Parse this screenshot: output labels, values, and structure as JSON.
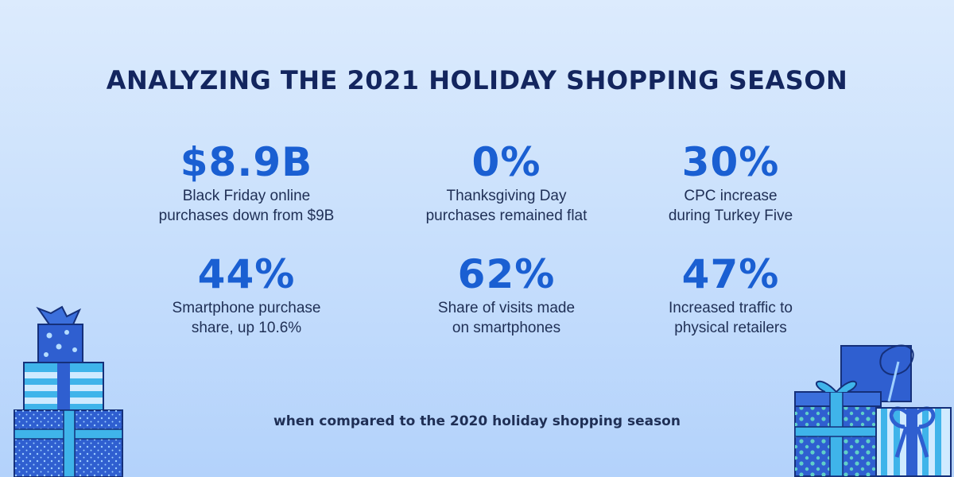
{
  "title": "ANALYZING THE 2021 HOLIDAY SHOPPING SEASON",
  "stats": [
    {
      "value": "$8.9B",
      "line1": "Black Friday online",
      "line2": "purchases down from $9B"
    },
    {
      "value": "0%",
      "line1": "Thanksgiving Day",
      "line2": "purchases remained flat"
    },
    {
      "value": "30%",
      "line1": "CPC increase",
      "line2": "during Turkey Five"
    },
    {
      "value": "44%",
      "line1": "Smartphone purchase",
      "line2": "share, up 10.6%"
    },
    {
      "value": "62%",
      "line1": "Share of visits made",
      "line2": "on smartphones"
    },
    {
      "value": "47%",
      "line1": "Increased traffic to",
      "line2": "physical retailers"
    }
  ],
  "footnote": "when compared to the 2020 holiday shopping season",
  "colors": {
    "title": "#13255e",
    "accent": "#1a5fd2",
    "body_text": "#1f2f55",
    "gift_blue": "#2f5fd0",
    "gift_light": "#3fb4ea",
    "gift_outline": "#15307a"
  },
  "decorations": [
    "gift-stack-left-icon",
    "gift-stack-right-icon"
  ]
}
